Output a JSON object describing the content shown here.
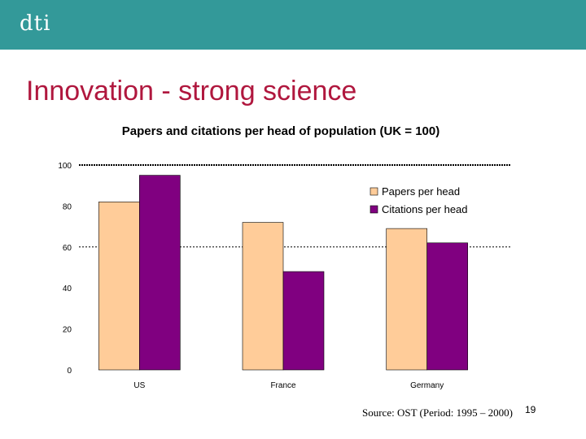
{
  "header": {
    "logo_text": "dti",
    "bar_color": "#339999"
  },
  "slide": {
    "title": "Innovation - strong science",
    "source": "Source: OST (Period: 1995 – 2000)",
    "page_number": "19"
  },
  "chart_data": {
    "type": "bar",
    "title": "Papers and citations per head of population (UK = 100)",
    "xlabel": "",
    "ylabel": "",
    "categories": [
      "US",
      "France",
      "Germany"
    ],
    "series": [
      {
        "name": "Papers per head",
        "values": [
          82,
          72,
          69
        ],
        "color": "#ffcc99"
      },
      {
        "name": "Citations per head",
        "values": [
          95,
          48,
          62
        ],
        "color": "#800080"
      }
    ],
    "ylim": [
      0,
      100
    ],
    "yticks": [
      0,
      20,
      40,
      60,
      80,
      100
    ],
    "reference_line": 100,
    "gridlines": [
      60
    ],
    "legend_position": "top-right"
  }
}
